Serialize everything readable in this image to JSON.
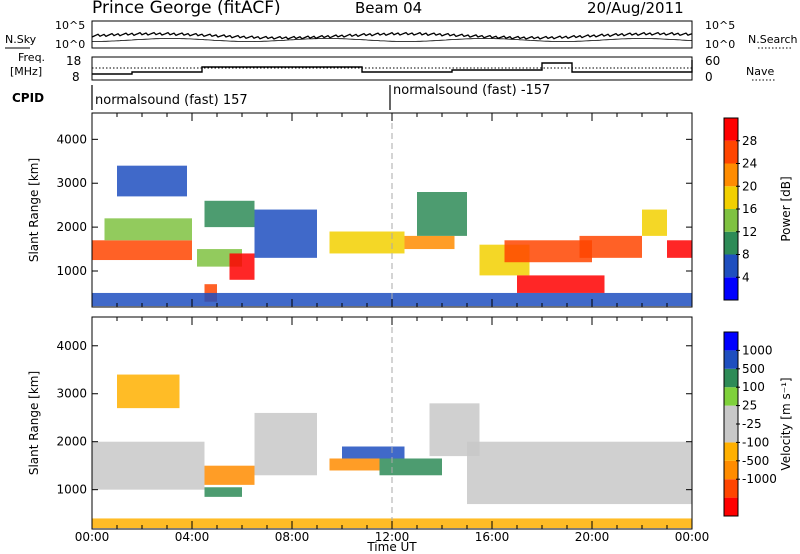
{
  "header": {
    "station": "Prince George (fitACF)",
    "beam": "Beam 04",
    "date": "20/Aug/2011"
  },
  "top_panels": {
    "nsky_label": "N.Sky",
    "nsky_ticks": [
      "10^5",
      "10^0"
    ],
    "nsearch_label": "N.Search",
    "nsearch_ticks": [
      "10^5",
      "10^0"
    ],
    "freq_label_1": "Freq.",
    "freq_label_2": "[MHz]",
    "freq_ticks": [
      "18",
      "8"
    ],
    "nave_label": "Nave",
    "nave_ticks": [
      "60",
      "0"
    ],
    "cpid_label": "CPID",
    "cpid_segments": [
      "normalsound (fast) 157",
      "normalsound (fast) -157"
    ]
  },
  "chart_data": [
    {
      "type": "heatmap",
      "title": "",
      "xlabel": "Time UT",
      "ylabel": "Slant Range [km]",
      "x_ticks": [
        "00:00",
        "04:00",
        "08:00",
        "12:00",
        "16:00",
        "20:00",
        "00:00"
      ],
      "y_ticks": [
        "1000",
        "2000",
        "3000",
        "4000"
      ],
      "xlim_hours": [
        0,
        24
      ],
      "ylim_km": [
        180,
        4600
      ],
      "colorbar_label": "Power [dB]",
      "colorbar_ticks": [
        "4",
        "8",
        "12",
        "16",
        "20",
        "24",
        "28"
      ],
      "colorbar_range": [
        0,
        30
      ],
      "colors": [
        "#0000ff",
        "#1f4fbf",
        "#2e8b57",
        "#7fc241",
        "#f2d000",
        "#ff8c00",
        "#ff4500",
        "#ff0000"
      ],
      "regions": [
        {
          "t0": 0.0,
          "t1": 4.0,
          "r0": 1250,
          "r1": 1700,
          "value": 26
        },
        {
          "t0": 0.5,
          "t1": 4.0,
          "r0": 1700,
          "r1": 2200,
          "value": 13
        },
        {
          "t0": 1.0,
          "t1": 3.8,
          "r0": 2700,
          "r1": 3400,
          "value": 5
        },
        {
          "t0": 4.2,
          "t1": 6.0,
          "r0": 1100,
          "r1": 1500,
          "value": 13
        },
        {
          "t0": 5.5,
          "t1": 6.5,
          "r0": 800,
          "r1": 1400,
          "value": 27
        },
        {
          "t0": 4.5,
          "t1": 5.0,
          "r0": 300,
          "r1": 700,
          "value": 24
        },
        {
          "t0": 4.5,
          "t1": 6.5,
          "r0": 2000,
          "r1": 2600,
          "value": 9
        },
        {
          "t0": 6.5,
          "t1": 9.0,
          "r0": 1300,
          "r1": 2400,
          "value": 6
        },
        {
          "t0": 9.5,
          "t1": 12.5,
          "r0": 1400,
          "r1": 1900,
          "value": 15
        },
        {
          "t0": 12.5,
          "t1": 14.5,
          "r0": 1500,
          "r1": 1800,
          "value": 19
        },
        {
          "t0": 13.0,
          "t1": 15.0,
          "r0": 1800,
          "r1": 2800,
          "value": 10
        },
        {
          "t0": 15.5,
          "t1": 17.5,
          "r0": 900,
          "r1": 1600,
          "value": 16
        },
        {
          "t0": 16.5,
          "t1": 20.0,
          "r0": 1200,
          "r1": 1700,
          "value": 23
        },
        {
          "t0": 17.0,
          "t1": 20.5,
          "r0": 500,
          "r1": 900,
          "value": 28
        },
        {
          "t0": 19.5,
          "t1": 22.0,
          "r0": 1300,
          "r1": 1800,
          "value": 25
        },
        {
          "t0": 22.0,
          "t1": 23.0,
          "r0": 1800,
          "r1": 2400,
          "value": 15
        },
        {
          "t0": 23.0,
          "t1": 24.0,
          "r0": 1300,
          "r1": 1700,
          "value": 27
        },
        {
          "t0": 0.0,
          "t1": 24.0,
          "r0": 200,
          "r1": 500,
          "value": 4
        }
      ]
    },
    {
      "type": "heatmap",
      "title": "",
      "xlabel": "Time UT",
      "ylabel": "Slant Range [km]",
      "x_ticks": [
        "00:00",
        "04:00",
        "08:00",
        "12:00",
        "16:00",
        "20:00",
        "00:00"
      ],
      "y_ticks": [
        "1000",
        "2000",
        "3000",
        "4000"
      ],
      "xlim_hours": [
        0,
        24
      ],
      "ylim_km": [
        180,
        4600
      ],
      "colorbar_label": "Velocity [m s⁻¹]",
      "colorbar_ticks": [
        "1000",
        "500",
        "100",
        "25",
        "-25",
        "-100",
        "-500",
        "-1000"
      ],
      "colors": [
        "#ff0000",
        "#ff4500",
        "#ff8c00",
        "#ffb000",
        "#c8c8c8",
        "#c8c8c8",
        "#7fd13b",
        "#2e8b57",
        "#1f4fbf",
        "#0000ff"
      ],
      "regions": [
        {
          "t0": 0.0,
          "t1": 4.5,
          "r0": 1000,
          "r1": 2000,
          "value": 0
        },
        {
          "t0": 1.0,
          "t1": 3.5,
          "r0": 2700,
          "r1": 3400,
          "value": -80
        },
        {
          "t0": 4.5,
          "t1": 6.5,
          "r0": 1100,
          "r1": 1500,
          "value": -300
        },
        {
          "t0": 4.5,
          "t1": 6.0,
          "r0": 850,
          "r1": 1050,
          "value": 150
        },
        {
          "t0": 6.5,
          "t1": 9.0,
          "r0": 1300,
          "r1": 2600,
          "value": 0
        },
        {
          "t0": 9.5,
          "t1": 11.5,
          "r0": 1400,
          "r1": 1650,
          "value": -300
        },
        {
          "t0": 10.0,
          "t1": 12.5,
          "r0": 1650,
          "r1": 1900,
          "value": 700
        },
        {
          "t0": 11.5,
          "t1": 14.0,
          "r0": 1300,
          "r1": 1650,
          "value": 300
        },
        {
          "t0": 13.5,
          "t1": 15.5,
          "r0": 1700,
          "r1": 2800,
          "value": 0
        },
        {
          "t0": 15.0,
          "t1": 24.0,
          "r0": 700,
          "r1": 2000,
          "value": 0
        },
        {
          "t0": 0.0,
          "t1": 24.0,
          "r0": 200,
          "r1": 400,
          "value": -80
        }
      ]
    }
  ]
}
